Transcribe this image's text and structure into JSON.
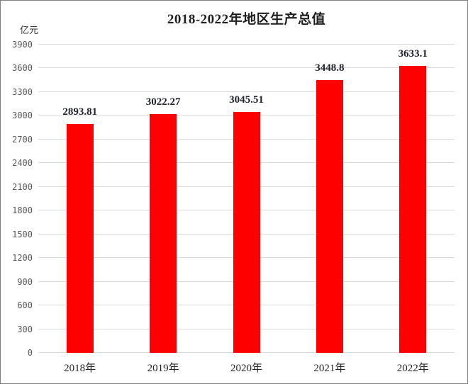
{
  "chart_data": {
    "type": "bar",
    "title": "2018-2022年地区生产总值",
    "unit_label": "亿元",
    "categories": [
      "2018年",
      "2019年",
      "2020年",
      "2021年",
      "2022年"
    ],
    "values": [
      2893.81,
      3022.27,
      3045.51,
      3448.8,
      3633.1
    ],
    "value_labels": [
      "2893.81",
      "3022.27",
      "3045.51",
      "3448.8",
      "3633.1"
    ],
    "ylim": [
      0,
      3900
    ],
    "ytick_step": 300,
    "yticks": [
      0,
      300,
      600,
      900,
      1200,
      1500,
      1800,
      2100,
      2400,
      2700,
      3000,
      3300,
      3600,
      3900
    ],
    "grid": true,
    "legend": false,
    "colors": {
      "bar": "#ff0000",
      "gridline": "#d9d9d9",
      "ytick_text": "#595959",
      "xtick_text": "#262626",
      "value_label": "#21242e",
      "title": "#1f1f1f",
      "unit_label": "#333333",
      "border": "#7f7f7f",
      "background": "#ffffff"
    }
  }
}
